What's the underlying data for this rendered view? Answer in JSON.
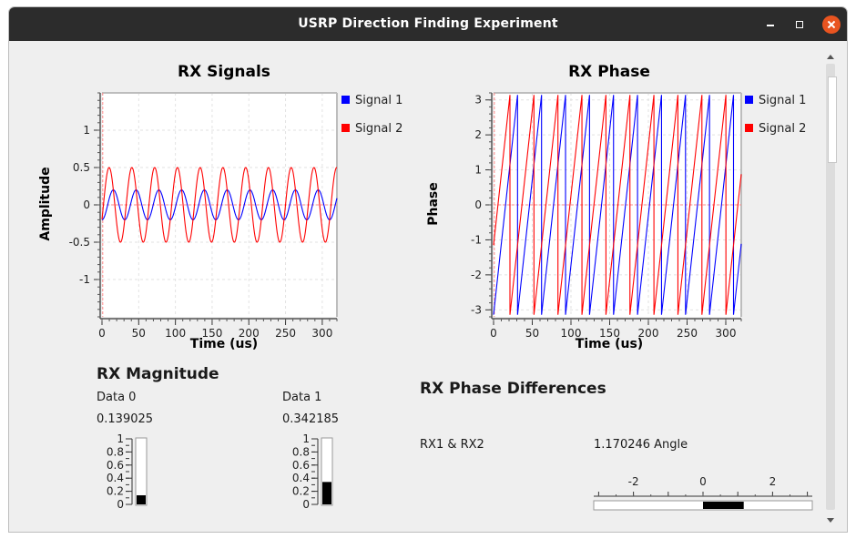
{
  "window": {
    "title": "USRP Direction Finding Experiment"
  },
  "rx_signals": {
    "chart_data": {
      "type": "line",
      "title": "RX Signals",
      "xlabel": "Time (us)",
      "ylabel": "Amplitude",
      "xlim": [
        0,
        320
      ],
      "ylim": [
        -1.5,
        1.5
      ],
      "xticks": [
        0,
        50,
        100,
        150,
        200,
        250,
        300
      ],
      "yticks": [
        1,
        0.5,
        0,
        -0.5,
        -1
      ],
      "grid": true,
      "legend_position": "right",
      "series": [
        {
          "name": "Signal 1",
          "color": "#0000ff",
          "amplitude": 0.2,
          "period_us": 31,
          "phase_rad": -1.57
        },
        {
          "name": "Signal 2",
          "color": "#ff0000",
          "amplitude": 0.5,
          "period_us": 31,
          "phase_rad": -0.4
        }
      ]
    }
  },
  "rx_phase": {
    "chart_data": {
      "type": "line",
      "title": "RX Phase",
      "xlabel": "Time (us)",
      "ylabel": "Phase",
      "xlim": [
        0,
        320
      ],
      "ylim": [
        -3.2,
        3.2
      ],
      "xticks": [
        0,
        50,
        100,
        150,
        200,
        250,
        300
      ],
      "yticks": [
        3,
        2,
        1,
        0,
        -1,
        -2,
        -3
      ],
      "grid": true,
      "legend_position": "right",
      "series": [
        {
          "name": "Signal 1",
          "color": "#0000ff",
          "period_us": 31,
          "start_phase": -3.14
        },
        {
          "name": "Signal 2",
          "color": "#ff0000",
          "period_us": 31,
          "start_phase": -1.15
        }
      ]
    }
  },
  "rx_magnitude": {
    "title": "RX Magnitude",
    "scale_labels": [
      "1",
      "0.8",
      "0.6",
      "0.4",
      "0.2",
      "0"
    ],
    "gauges": [
      {
        "label": "Data 0",
        "value_text": "0.139025",
        "value": 0.139025
      },
      {
        "label": "Data 1",
        "value_text": "0.342185",
        "value": 0.342185
      }
    ]
  },
  "phase_diff": {
    "title": "RX Phase Differences",
    "pair_label": "RX1 & RX2",
    "value_text": "1.170246 Angle",
    "value": 1.170246,
    "scale_min": -3.14159,
    "scale_max": 3.14159,
    "ticks": [
      "-2",
      "0",
      "2"
    ]
  }
}
